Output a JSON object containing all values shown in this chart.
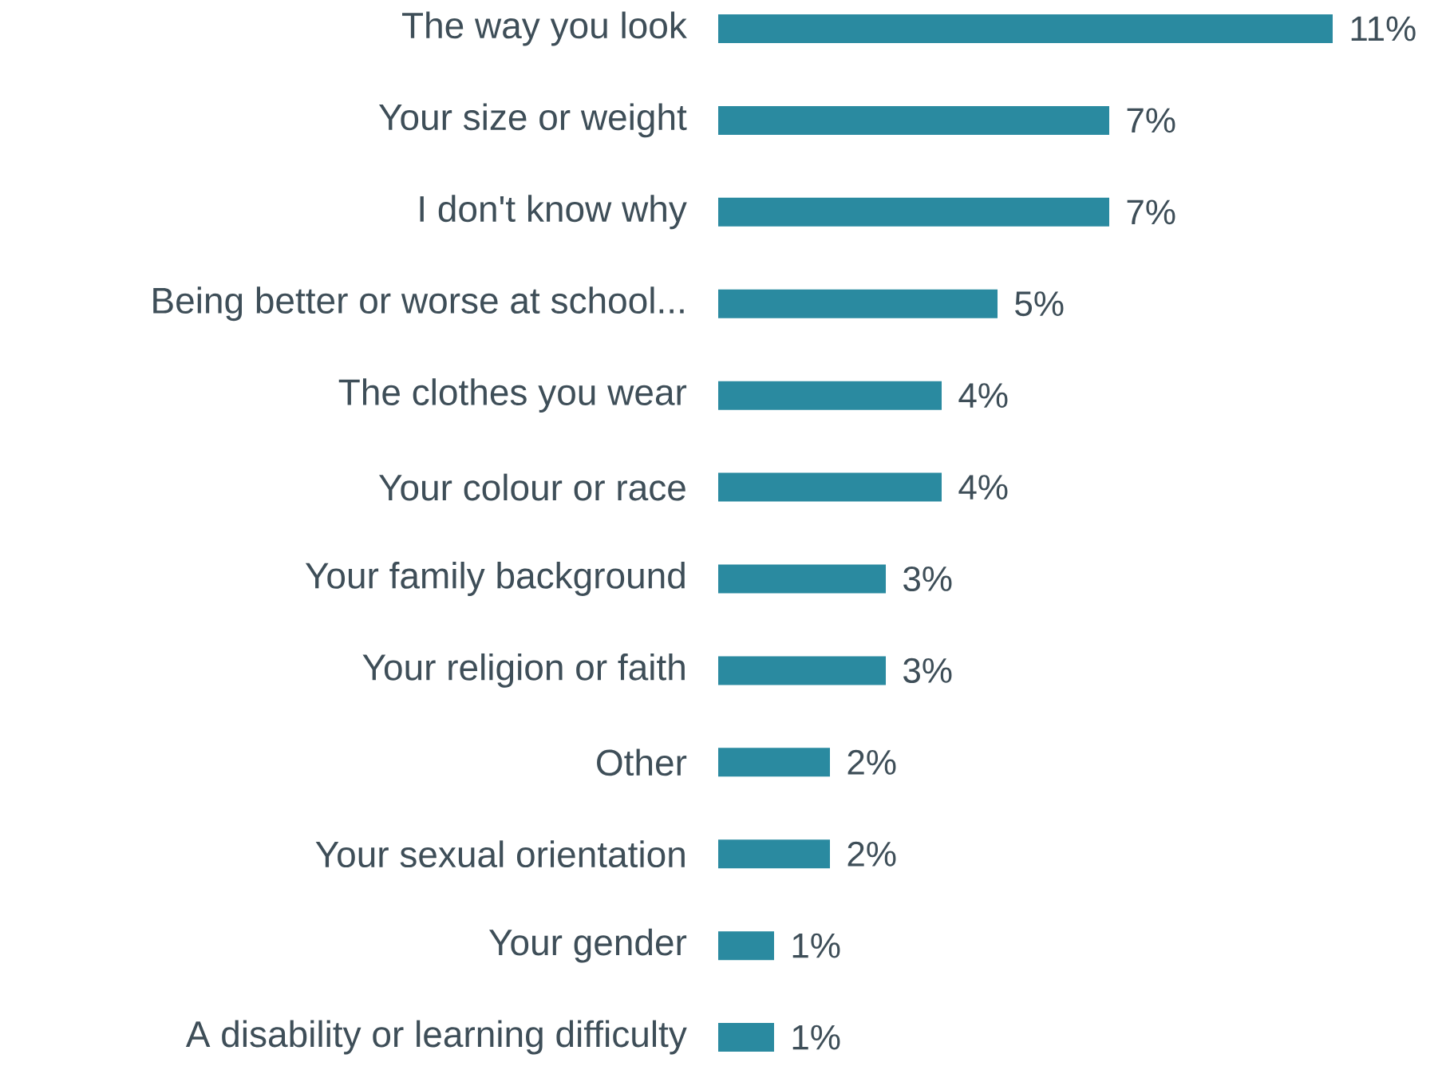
{
  "chart_data": {
    "type": "bar",
    "orientation": "horizontal",
    "categories": [
      "The way you look",
      "Your size or weight",
      "I don't know why",
      "Being better or worse at school...",
      "The clothes you wear",
      "Your colour or race",
      "Your family background",
      "Your religion or faith",
      "Other",
      "Your sexual orientation",
      "Your gender",
      "A disability or learning difficulty"
    ],
    "values": [
      11,
      7,
      7,
      5,
      4,
      4,
      3,
      3,
      2,
      2,
      1,
      1
    ],
    "value_labels": [
      "11%",
      "7%",
      "7%",
      "5%",
      "4%",
      "4%",
      "3%",
      "3%",
      "2%",
      "2%",
      "1%",
      "1%"
    ],
    "color": "#2a8aa0"
  }
}
